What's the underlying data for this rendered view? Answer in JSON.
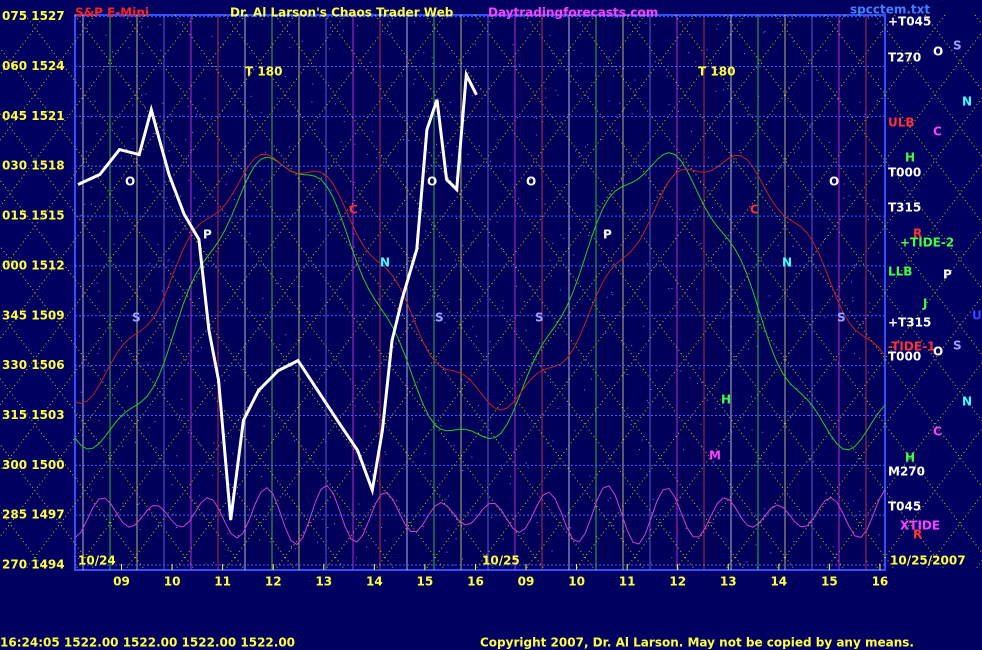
{
  "chart_data": {
    "type": "line",
    "subtitle": "S&P E-Mini",
    "title": "Dr. Al Larson's Chaos Trader Web",
    "source": "Daytradingforecasts.com",
    "file": "spcctem.txt",
    "x": [
      8.14,
      8.57,
      8.96,
      9.35,
      9.59,
      9.75,
      9.94,
      10.24,
      10.53,
      10.73,
      10.92,
      11.16,
      11.41,
      11.71,
      12.1,
      12.49,
      12.88,
      13.27,
      13.67,
      13.96,
      14.16,
      14.35,
      14.55,
      14.84,
      15.04,
      15.24,
      15.43,
      15.63,
      15.82,
      16.02
    ],
    "values": [
      1516.9,
      1517.5,
      1519.0,
      1518.7,
      1521.4,
      1519.6,
      1517.5,
      1515.1,
      1513.6,
      1508.1,
      1505.1,
      1496.7,
      1502.7,
      1504.5,
      1505.7,
      1506.3,
      1504.5,
      1502.7,
      1500.9,
      1498.5,
      1502.1,
      1507.5,
      1510.0,
      1513.0,
      1520.2,
      1522.0,
      1517.2,
      1516.6,
      1523.5,
      1522.3
    ],
    "color": "#ffffff",
    "xlim": [
      8.08,
      24.1
    ],
    "ylim": [
      1493.7,
      1527.1
    ],
    "grid": true,
    "xticks": [
      {
        "value": 9,
        "label": "09"
      },
      10,
      11,
      12,
      13,
      14,
      15,
      16,
      {
        "value": 17,
        "label": "09"
      },
      {
        "value": 18,
        "label": "10"
      },
      {
        "value": 19,
        "label": "11"
      },
      {
        "value": 20,
        "label": "12"
      },
      {
        "value": 21,
        "label": "13"
      },
      {
        "value": 22,
        "label": "14"
      },
      {
        "value": 23,
        "label": "15"
      },
      {
        "value": 24,
        "label": "16"
      }
    ],
    "yticks": [
      {
        "value": 1527,
        "label": "075 1527"
      },
      {
        "value": 1524,
        "label": "060 1524"
      },
      {
        "value": 1521,
        "label": "045 1521"
      },
      {
        "value": 1518,
        "label": "030 1518"
      },
      {
        "value": 1515,
        "label": "015 1515"
      },
      {
        "value": 1512,
        "label": "000 1512"
      },
      {
        "value": 1509,
        "label": "345 1509"
      },
      {
        "value": 1506,
        "label": "330 1506"
      },
      {
        "value": 1503,
        "label": "315 1503"
      },
      {
        "value": 1500,
        "label": "300 1500"
      },
      {
        "value": 1497,
        "label": "285 1497"
      },
      {
        "value": 1494,
        "label": "270 1494"
      }
    ],
    "date_labels": [
      "10/24",
      "10/25",
      "10/25/2007"
    ],
    "annotations": [
      {
        "text": "+T045"
      },
      {
        "text": "T270"
      },
      {
        "text": "ULB"
      },
      {
        "text": "T000"
      },
      {
        "text": "T315"
      },
      {
        "text": "+TIDE-2"
      },
      {
        "text": "LLB"
      },
      {
        "text": "+T315"
      },
      {
        "text": "-TIDE-1"
      },
      {
        "text": "T000"
      },
      {
        "text": "M270"
      },
      {
        "text": "T045"
      },
      {
        "text": "XTIDE"
      },
      {
        "text": "T 180"
      },
      {
        "text": "T 180"
      },
      {
        "text": "O"
      },
      {
        "text": "O"
      },
      {
        "text": "O"
      },
      {
        "text": "O"
      },
      {
        "text": "P"
      },
      {
        "text": "P"
      },
      {
        "text": "S"
      },
      {
        "text": "S"
      },
      {
        "text": "S"
      },
      {
        "text": "S"
      },
      {
        "text": "N"
      },
      {
        "text": "N"
      },
      {
        "text": "C"
      },
      {
        "text": "C"
      },
      {
        "text": "H"
      },
      {
        "text": "M"
      },
      {
        "text": "O"
      },
      {
        "text": "S"
      },
      {
        "text": "N"
      },
      {
        "text": "C"
      },
      {
        "text": "H"
      },
      {
        "text": "R"
      },
      {
        "text": "P"
      },
      {
        "text": "J"
      },
      {
        "text": "U"
      },
      {
        "text": "O"
      },
      {
        "text": "S"
      },
      {
        "text": "N"
      },
      {
        "text": "C"
      },
      {
        "text": "H"
      },
      {
        "text": "R"
      }
    ],
    "footer": {
      "quote": "16:24:05  1522.00 1522.00 1522.00 1522.00",
      "copyright": "Copyright 2007, Dr. Al Larson. May not be copied by any means."
    }
  }
}
